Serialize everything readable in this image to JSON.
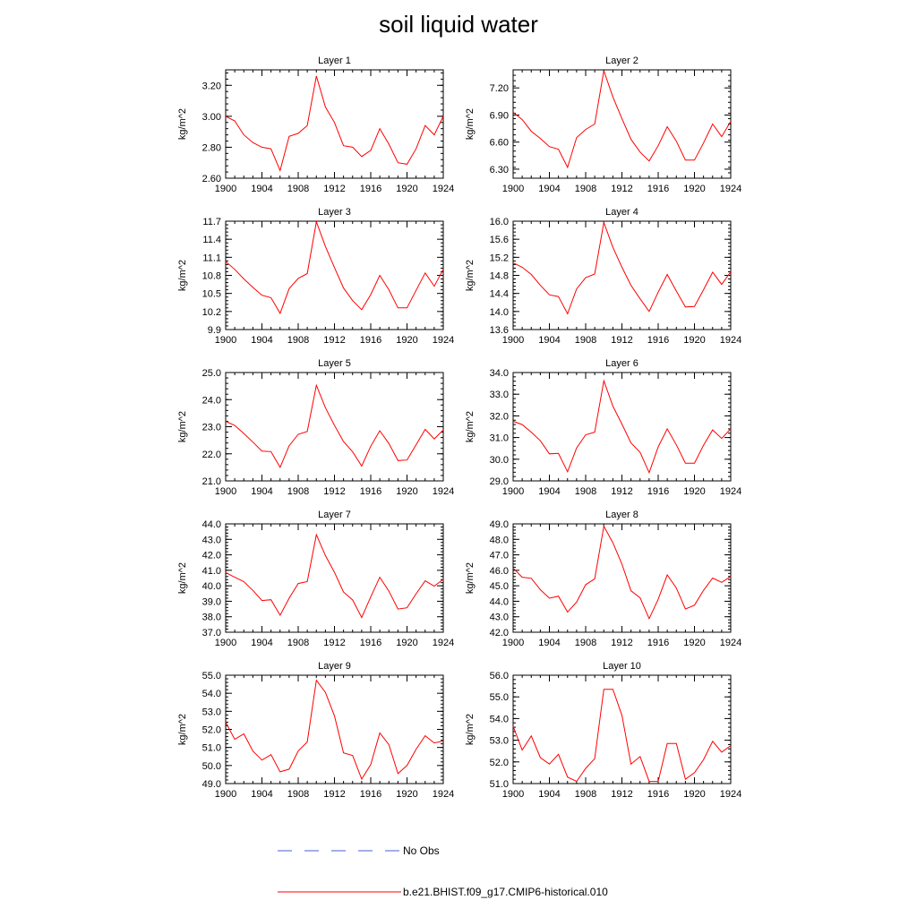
{
  "title": "soil liquid water",
  "legend": {
    "no_obs_label": "No Obs",
    "model_label": "b.e21.BHIST.f09_g17.CMIP6-historical.010",
    "no_obs_color": "#4a5fd0",
    "model_color": "#ff0000"
  },
  "chart_data": [
    {
      "type": "line",
      "title": "Layer 1",
      "ylabel": "kg/m^2",
      "xlim": [
        1900,
        1924
      ],
      "x_ticks": [
        1900,
        1904,
        1908,
        1912,
        1916,
        1920,
        1924
      ],
      "ylim": [
        2.6,
        3.3
      ],
      "y_ticks": [
        "2.60",
        "2.80",
        "3.00",
        "3.20"
      ],
      "x": [
        1900,
        1901,
        1902,
        1903,
        1904,
        1905,
        1906,
        1907,
        1908,
        1909,
        1910,
        1911,
        1912,
        1913,
        1914,
        1915,
        1916,
        1917,
        1918,
        1919,
        1920,
        1921,
        1922,
        1923,
        1924
      ],
      "values": [
        3.0,
        2.97,
        2.88,
        2.83,
        2.8,
        2.79,
        2.65,
        2.87,
        2.89,
        2.94,
        3.26,
        3.06,
        2.96,
        2.81,
        2.8,
        2.74,
        2.78,
        2.92,
        2.82,
        2.7,
        2.69,
        2.79,
        2.94,
        2.88,
        3.0
      ]
    },
    {
      "type": "line",
      "title": "Layer 2",
      "ylabel": "kg/m^2",
      "xlim": [
        1900,
        1924
      ],
      "x_ticks": [
        1900,
        1904,
        1908,
        1912,
        1916,
        1920,
        1924
      ],
      "ylim": [
        6.2,
        7.4
      ],
      "y_ticks": [
        "6.30",
        "6.60",
        "6.90",
        "7.20"
      ],
      "x": [
        1900,
        1901,
        1902,
        1903,
        1904,
        1905,
        1906,
        1907,
        1908,
        1909,
        1910,
        1911,
        1912,
        1913,
        1914,
        1915,
        1916,
        1917,
        1918,
        1919,
        1920,
        1921,
        1922,
        1923,
        1924
      ],
      "values": [
        6.93,
        6.85,
        6.72,
        6.64,
        6.55,
        6.52,
        6.32,
        6.65,
        6.74,
        6.8,
        7.39,
        7.1,
        6.86,
        6.63,
        6.49,
        6.39,
        6.56,
        6.77,
        6.61,
        6.4,
        6.4,
        6.59,
        6.8,
        6.66,
        6.83
      ]
    },
    {
      "type": "line",
      "title": "Layer 3",
      "ylabel": "kg/m^2",
      "xlim": [
        1900,
        1924
      ],
      "x_ticks": [
        1900,
        1904,
        1908,
        1912,
        1916,
        1920,
        1924
      ],
      "ylim": [
        9.9,
        11.7
      ],
      "y_ticks": [
        "9.9",
        "10.2",
        "10.5",
        "10.8",
        "11.1",
        "11.4",
        "11.7"
      ],
      "x": [
        1900,
        1901,
        1902,
        1903,
        1904,
        1905,
        1906,
        1907,
        1908,
        1909,
        1910,
        1911,
        1912,
        1913,
        1914,
        1915,
        1916,
        1917,
        1918,
        1919,
        1920,
        1921,
        1922,
        1923,
        1924
      ],
      "values": [
        11.03,
        10.9,
        10.74,
        10.6,
        10.47,
        10.43,
        10.17,
        10.58,
        10.75,
        10.83,
        11.69,
        11.28,
        10.93,
        10.59,
        10.38,
        10.23,
        10.48,
        10.8,
        10.56,
        10.26,
        10.26,
        10.55,
        10.84,
        10.62,
        10.9
      ]
    },
    {
      "type": "line",
      "title": "Layer 4",
      "ylabel": "kg/m^2",
      "xlim": [
        1900,
        1924
      ],
      "x_ticks": [
        1900,
        1904,
        1908,
        1912,
        1916,
        1920,
        1924
      ],
      "ylim": [
        13.6,
        16.0
      ],
      "y_ticks": [
        "13.6",
        "14.0",
        "14.4",
        "14.8",
        "15.2",
        "15.6",
        "16.0"
      ],
      "x": [
        1900,
        1901,
        1902,
        1903,
        1904,
        1905,
        1906,
        1907,
        1908,
        1909,
        1910,
        1911,
        1912,
        1913,
        1914,
        1915,
        1916,
        1917,
        1918,
        1919,
        1920,
        1921,
        1922,
        1923,
        1924
      ],
      "values": [
        15.08,
        14.98,
        14.82,
        14.58,
        14.37,
        14.33,
        13.95,
        14.5,
        14.75,
        14.83,
        15.97,
        15.42,
        14.98,
        14.58,
        14.28,
        14.0,
        14.43,
        14.82,
        14.45,
        14.1,
        14.11,
        14.48,
        14.87,
        14.6,
        14.88
      ]
    },
    {
      "type": "line",
      "title": "Layer 5",
      "ylabel": "kg/m^2",
      "xlim": [
        1900,
        1924
      ],
      "x_ticks": [
        1900,
        1904,
        1908,
        1912,
        1916,
        1920,
        1924
      ],
      "ylim": [
        21.0,
        25.0
      ],
      "y_ticks": [
        "21.0",
        "22.0",
        "23.0",
        "24.0",
        "25.0"
      ],
      "x": [
        1900,
        1901,
        1902,
        1903,
        1904,
        1905,
        1906,
        1907,
        1908,
        1909,
        1910,
        1911,
        1912,
        1913,
        1914,
        1915,
        1916,
        1917,
        1918,
        1919,
        1920,
        1921,
        1922,
        1923,
        1924
      ],
      "values": [
        23.2,
        23.05,
        22.75,
        22.43,
        22.1,
        22.08,
        21.5,
        22.3,
        22.72,
        22.82,
        24.53,
        23.7,
        23.05,
        22.45,
        22.07,
        21.55,
        22.28,
        22.85,
        22.38,
        21.75,
        21.77,
        22.33,
        22.9,
        22.55,
        22.88
      ]
    },
    {
      "type": "line",
      "title": "Layer 6",
      "ylabel": "kg/m^2",
      "xlim": [
        1900,
        1924
      ],
      "x_ticks": [
        1900,
        1904,
        1908,
        1912,
        1916,
        1920,
        1924
      ],
      "ylim": [
        29.0,
        34.0
      ],
      "y_ticks": [
        "29.0",
        "30.0",
        "31.0",
        "32.0",
        "33.0",
        "34.0"
      ],
      "x": [
        1900,
        1901,
        1902,
        1903,
        1904,
        1905,
        1906,
        1907,
        1908,
        1909,
        1910,
        1911,
        1912,
        1913,
        1914,
        1915,
        1916,
        1917,
        1918,
        1919,
        1920,
        1921,
        1922,
        1923,
        1924
      ],
      "values": [
        31.75,
        31.6,
        31.25,
        30.85,
        30.25,
        30.27,
        29.42,
        30.52,
        31.13,
        31.25,
        33.62,
        32.45,
        31.62,
        30.75,
        30.32,
        29.38,
        30.57,
        31.4,
        30.66,
        29.82,
        29.82,
        30.64,
        31.35,
        30.96,
        31.4
      ]
    },
    {
      "type": "line",
      "title": "Layer 7",
      "ylabel": "kg/m^2",
      "xlim": [
        1900,
        1924
      ],
      "x_ticks": [
        1900,
        1904,
        1908,
        1912,
        1916,
        1920,
        1924
      ],
      "ylim": [
        37.0,
        44.0
      ],
      "y_ticks": [
        "37.0",
        "38.0",
        "39.0",
        "40.0",
        "41.0",
        "42.0",
        "43.0",
        "44.0"
      ],
      "x": [
        1900,
        1901,
        1902,
        1903,
        1904,
        1905,
        1906,
        1907,
        1908,
        1909,
        1910,
        1911,
        1912,
        1913,
        1914,
        1915,
        1916,
        1917,
        1918,
        1919,
        1920,
        1921,
        1922,
        1923,
        1924
      ],
      "values": [
        40.85,
        40.55,
        40.27,
        39.7,
        39.05,
        39.1,
        38.1,
        39.2,
        40.15,
        40.27,
        43.3,
        41.95,
        40.87,
        39.6,
        39.08,
        37.95,
        39.28,
        40.55,
        39.65,
        38.5,
        38.58,
        39.48,
        40.32,
        39.98,
        40.42
      ]
    },
    {
      "type": "line",
      "title": "Layer 8",
      "ylabel": "kg/m^2",
      "xlim": [
        1900,
        1924
      ],
      "x_ticks": [
        1900,
        1904,
        1908,
        1912,
        1916,
        1920,
        1924
      ],
      "ylim": [
        42.0,
        49.0
      ],
      "y_ticks": [
        "42.0",
        "43.0",
        "44.0",
        "45.0",
        "46.0",
        "47.0",
        "48.0",
        "49.0"
      ],
      "x": [
        1900,
        1901,
        1902,
        1903,
        1904,
        1905,
        1906,
        1907,
        1908,
        1909,
        1910,
        1911,
        1912,
        1913,
        1914,
        1915,
        1916,
        1917,
        1918,
        1919,
        1920,
        1921,
        1922,
        1923,
        1924
      ],
      "values": [
        46.15,
        45.55,
        45.48,
        44.75,
        44.2,
        44.33,
        43.3,
        43.95,
        45.07,
        45.45,
        48.85,
        47.78,
        46.4,
        44.68,
        44.22,
        42.88,
        44.13,
        45.7,
        44.85,
        43.5,
        43.75,
        44.7,
        45.5,
        45.22,
        45.6
      ]
    },
    {
      "type": "line",
      "title": "Layer 9",
      "ylabel": "kg/m^2",
      "xlim": [
        1900,
        1924
      ],
      "x_ticks": [
        1900,
        1904,
        1908,
        1912,
        1916,
        1920,
        1924
      ],
      "ylim": [
        49.0,
        55.0
      ],
      "y_ticks": [
        "49.0",
        "50.0",
        "51.0",
        "52.0",
        "53.0",
        "54.0",
        "55.0"
      ],
      "x": [
        1900,
        1901,
        1902,
        1903,
        1904,
        1905,
        1906,
        1907,
        1908,
        1909,
        1910,
        1911,
        1912,
        1913,
        1914,
        1915,
        1916,
        1917,
        1918,
        1919,
        1920,
        1921,
        1922,
        1923,
        1924
      ],
      "values": [
        52.4,
        51.45,
        51.75,
        50.8,
        50.3,
        50.6,
        49.65,
        49.8,
        50.8,
        51.3,
        54.72,
        54.05,
        52.75,
        50.7,
        50.55,
        49.25,
        50.05,
        51.8,
        51.15,
        49.55,
        50.0,
        50.9,
        51.65,
        51.25,
        51.35
      ]
    },
    {
      "type": "line",
      "title": "Layer 10",
      "ylabel": "kg/m^2",
      "xlim": [
        1900,
        1924
      ],
      "x_ticks": [
        1900,
        1904,
        1908,
        1912,
        1916,
        1920,
        1924
      ],
      "ylim": [
        51.0,
        56.0
      ],
      "y_ticks": [
        "51.0",
        "52.0",
        "53.0",
        "54.0",
        "55.0",
        "56.0"
      ],
      "x": [
        1900,
        1901,
        1902,
        1903,
        1904,
        1905,
        1906,
        1907,
        1908,
        1909,
        1910,
        1911,
        1912,
        1913,
        1914,
        1915,
        1916,
        1917,
        1918,
        1919,
        1920,
        1921,
        1922,
        1923,
        1924
      ],
      "values": [
        53.65,
        52.55,
        53.2,
        52.2,
        51.9,
        52.35,
        51.3,
        51.1,
        51.7,
        52.15,
        55.35,
        55.35,
        54.15,
        51.9,
        52.25,
        51.1,
        51.1,
        52.85,
        52.85,
        51.2,
        51.5,
        52.1,
        52.95,
        52.45,
        52.75
      ]
    }
  ]
}
